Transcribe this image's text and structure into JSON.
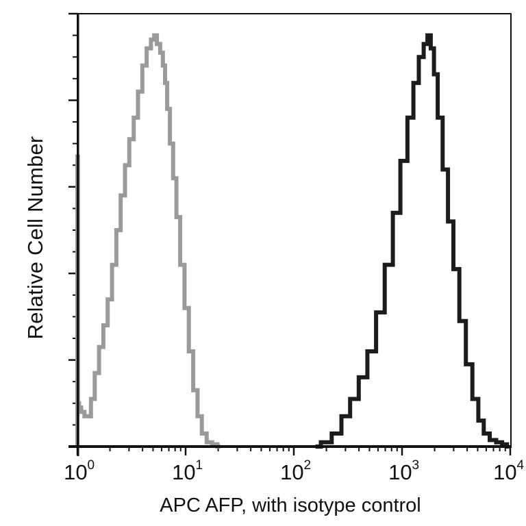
{
  "chart_data": {
    "type": "line",
    "subtype": "flow-cytometry-histogram",
    "title": "",
    "xlabel": "APC AFP, with isotype control",
    "ylabel": "Relative Cell Number",
    "xscale": "log",
    "xlim": [
      1,
      12000
    ],
    "ylim": [
      0,
      100
    ],
    "grid": false,
    "legend": null,
    "x_tick_labels": [
      {
        "base": "10",
        "exp": "0",
        "value": 1
      },
      {
        "base": "10",
        "exp": "1",
        "value": 10
      },
      {
        "base": "10",
        "exp": "2",
        "value": 100
      },
      {
        "base": "10",
        "exp": "3",
        "value": 1000
      },
      {
        "base": "10",
        "exp": "4",
        "value": 10000
      }
    ],
    "y_tick_labels": [],
    "y_major_ticks": 5,
    "y_minor_per_major": 3,
    "series": [
      {
        "name": "Isotype control",
        "color": "#9a9a9a",
        "x_log10": [
          0.0,
          0.0,
          0.01,
          0.02,
          0.05,
          0.08,
          0.11,
          0.14,
          0.18,
          0.22,
          0.26,
          0.3,
          0.34,
          0.38,
          0.42,
          0.46,
          0.5,
          0.54,
          0.58,
          0.62,
          0.66,
          0.7,
          0.72,
          0.75,
          0.78,
          0.8,
          0.82,
          0.84,
          0.87,
          0.9,
          0.93,
          0.97,
          1.01,
          1.05,
          1.09,
          1.13,
          1.17,
          1.22,
          1.27,
          1.32
        ],
        "values": [
          0,
          67,
          10,
          9,
          8,
          7,
          7,
          11,
          17,
          23,
          28,
          34,
          42,
          50,
          58,
          65,
          71,
          76,
          82,
          88,
          92,
          94,
          95,
          93,
          91,
          88,
          84,
          78,
          70,
          62,
          53,
          42,
          32,
          22,
          13,
          7,
          3,
          1,
          0.5,
          0
        ]
      },
      {
        "name": "AFP",
        "color": "#1c1c1c",
        "x_log10": [
          2.2,
          2.3,
          2.4,
          2.48,
          2.56,
          2.64,
          2.72,
          2.8,
          2.88,
          2.95,
          3.02,
          3.08,
          3.13,
          3.18,
          3.22,
          3.25,
          3.28,
          3.31,
          3.35,
          3.4,
          3.45,
          3.5,
          3.56,
          3.62,
          3.68,
          3.73,
          3.78,
          3.84,
          3.9,
          3.95,
          3.99
        ],
        "values": [
          0,
          1,
          3,
          7,
          11,
          16,
          22,
          31,
          42,
          54,
          66,
          76,
          84,
          90,
          93,
          95,
          92,
          86,
          76,
          64,
          52,
          41,
          29,
          19,
          11,
          6,
          3,
          1.5,
          1,
          0.5,
          0
        ]
      }
    ]
  }
}
